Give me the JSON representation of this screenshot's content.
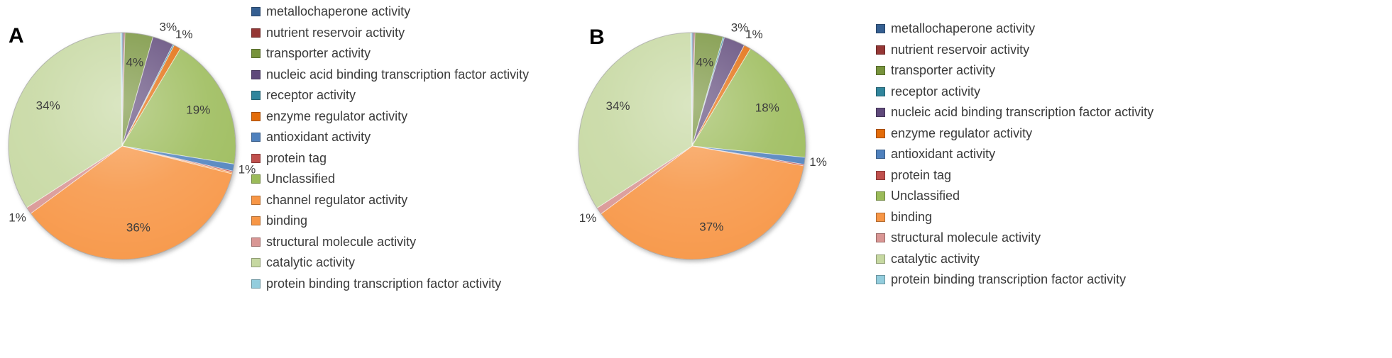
{
  "chart_data": [
    {
      "type": "pie",
      "panel": "A",
      "title": "",
      "legend_position": "right",
      "segments": [
        {
          "name": "metallochaperone activity",
          "value": 0.2,
          "color": "#355F91",
          "label": "",
          "label_pos": "inside"
        },
        {
          "name": "nutrient reservoir activity",
          "value": 0.2,
          "color": "#953735",
          "label": "",
          "label_pos": "inside"
        },
        {
          "name": "transporter activity",
          "value": 4,
          "color": "#77933C",
          "label": "4%",
          "label_pos": "inside"
        },
        {
          "name": "nucleic acid binding transcription factor activity",
          "value": 3,
          "color": "#5F497A",
          "label": "3%",
          "label_pos": "outside"
        },
        {
          "name": "receptor activity",
          "value": 0.2,
          "color": "#31859C",
          "label": "",
          "label_pos": "inside"
        },
        {
          "name": "enzyme regulator activity",
          "value": 1,
          "color": "#E36C0A",
          "label": "1%",
          "label_pos": "outside"
        },
        {
          "name": "Unclassified",
          "value": 19,
          "color": "#9BBB59",
          "label": "19%",
          "label_pos": "inside"
        },
        {
          "name": "antioxidant activity",
          "value": 1,
          "color": "#4F81BD",
          "label": "1%",
          "label_pos": "outside"
        },
        {
          "name": "protein tag",
          "value": 0.2,
          "color": "#C0504D",
          "label": "",
          "label_pos": "inside"
        },
        {
          "name": "channel regulator activity",
          "value": 0.2,
          "color": "#F79646",
          "label": "",
          "label_pos": "inside"
        },
        {
          "name": "binding",
          "value": 36,
          "color": "#F79646",
          "label": "36%",
          "label_pos": "inside"
        },
        {
          "name": "structural molecule activity",
          "value": 1,
          "color": "#D99694",
          "label": "1%",
          "label_pos": "outside"
        },
        {
          "name": "catalytic activity",
          "value": 34,
          "color": "#C6D8A1",
          "label": "34%",
          "label_pos": "inside"
        },
        {
          "name": "protein binding transcription factor activity",
          "value": 0.2,
          "color": "#93CDDD",
          "label": "",
          "label_pos": "inside"
        }
      ],
      "legend_order": [
        0,
        1,
        2,
        3,
        4,
        5,
        7,
        8,
        6,
        9,
        10,
        11,
        12,
        13
      ]
    },
    {
      "type": "pie",
      "panel": "B",
      "title": "",
      "legend_position": "right",
      "segments": [
        {
          "name": "metallochaperone activity",
          "value": 0.2,
          "color": "#355F91",
          "label": "",
          "label_pos": "inside"
        },
        {
          "name": "nutrient reservoir activity",
          "value": 0.2,
          "color": "#953735",
          "label": "",
          "label_pos": "inside"
        },
        {
          "name": "transporter activity",
          "value": 4,
          "color": "#77933C",
          "label": "4%",
          "label_pos": "inside"
        },
        {
          "name": "receptor activity",
          "value": 0.2,
          "color": "#31859C",
          "label": "",
          "label_pos": "inside"
        },
        {
          "name": "nucleic acid binding transcription factor activity",
          "value": 3,
          "color": "#5F497A",
          "label": "3%",
          "label_pos": "outside"
        },
        {
          "name": "enzyme regulator activity",
          "value": 1,
          "color": "#E36C0A",
          "label": "1%",
          "label_pos": "outside"
        },
        {
          "name": "Unclassified",
          "value": 18,
          "color": "#9BBB59",
          "label": "18%",
          "label_pos": "inside"
        },
        {
          "name": "antioxidant activity",
          "value": 1,
          "color": "#4F81BD",
          "label": "1%",
          "label_pos": "outside"
        },
        {
          "name": "protein tag",
          "value": 0.2,
          "color": "#C0504D",
          "label": "",
          "label_pos": "inside"
        },
        {
          "name": "binding",
          "value": 37,
          "color": "#F79646",
          "label": "37%",
          "label_pos": "inside"
        },
        {
          "name": "structural molecule activity",
          "value": 1,
          "color": "#D99694",
          "label": "1%",
          "label_pos": "outside"
        },
        {
          "name": "catalytic activity",
          "value": 34,
          "color": "#C6D8A1",
          "label": "34%",
          "label_pos": "inside"
        },
        {
          "name": "protein binding transcription factor activity",
          "value": 0.2,
          "color": "#93CDDD",
          "label": "",
          "label_pos": "inside"
        }
      ],
      "legend_order": [
        0,
        1,
        2,
        3,
        4,
        5,
        7,
        8,
        6,
        9,
        10,
        11,
        12
      ]
    }
  ]
}
